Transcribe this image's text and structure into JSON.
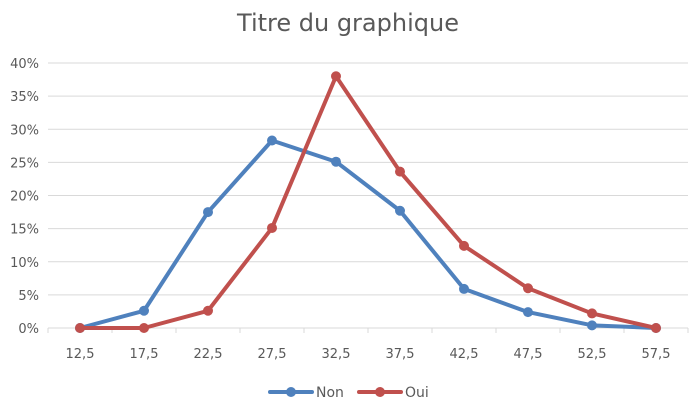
{
  "chart_data": {
    "type": "line",
    "title": "Titre du graphique",
    "xlabel": "",
    "ylabel": "",
    "categories": [
      "12,5",
      "17,5",
      "22,5",
      "27,5",
      "32,5",
      "37,5",
      "42,5",
      "47,5",
      "52,5",
      "57,5"
    ],
    "y_ticks": [
      "0%",
      "5%",
      "10%",
      "15%",
      "20%",
      "25%",
      "30%",
      "35%",
      "40%"
    ],
    "ylim": [
      0,
      40
    ],
    "grid": true,
    "legend_position": "bottom",
    "series": [
      {
        "name": "Non",
        "color": "#4f81bd",
        "values": [
          0,
          2.6,
          17.5,
          28.3,
          25.1,
          17.7,
          5.9,
          2.4,
          0.4,
          0
        ]
      },
      {
        "name": "Oui",
        "color": "#c0504d",
        "values": [
          0,
          0,
          2.6,
          15.1,
          38.0,
          23.6,
          12.4,
          6.0,
          2.2,
          0
        ]
      }
    ]
  }
}
